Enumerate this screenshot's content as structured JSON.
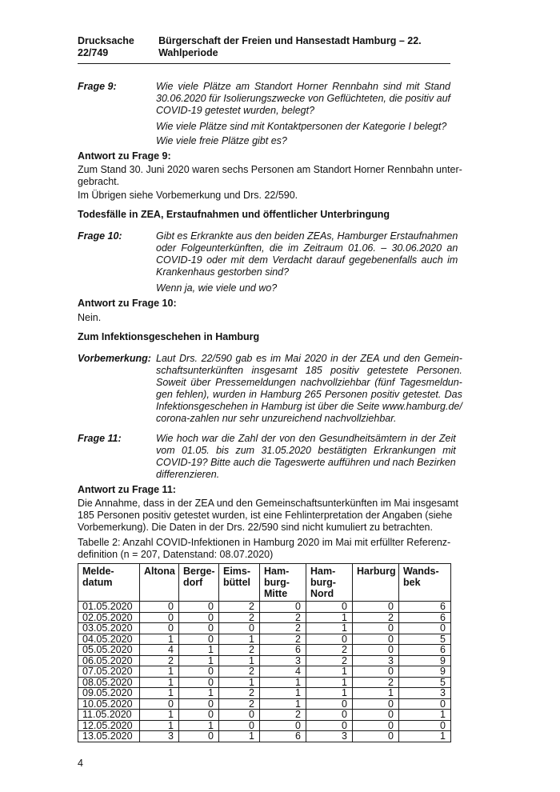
{
  "header": {
    "left": "Drucksache 22/749",
    "right": "Bürgerschaft der Freien und Hansestadt Hamburg – 22. Wahlperiode"
  },
  "frage9": {
    "label": "Frage 9:",
    "q1_lines": [
      "Wie viele Plätze am Standort Horner Rennbahn sind mit Stand",
      "30.06.2020 für Isolierungszwecke von Geflüchteten, die positiv auf",
      "COVID-19 getestet wurden, belegt?"
    ],
    "q2": "Wie viele Plätze sind mit Kontaktpersonen der Kategorie I belegt?",
    "q3": "Wie viele freie Plätze gibt es?"
  },
  "antwort9": {
    "heading": "Antwort zu Frage 9:",
    "para1_lines": [
      "Zum Stand 30. Juni 2020 waren sechs Personen am Standort Horner Rennbahn unter-",
      "gebracht."
    ],
    "para2": "Im Übrigen siehe Vorbemerkung und Drs. 22/590."
  },
  "section1_heading": "Todesfälle in ZEA, Erstaufnahmen und öffentlicher Unterbringung",
  "frage10": {
    "label": "Frage 10:",
    "q1_lines": [
      "Gibt es Erkrankte aus den beiden ZEAs, Hamburger Erstaufnahmen",
      "oder Folgeunterkünften, die im Zeitraum 01.06. – 30.06.2020 an",
      "COVID-19 oder mit dem Verdacht darauf gegebenenfalls auch im",
      "Krankenhaus gestorben sind?"
    ],
    "q2": "Wenn ja, wie viele und wo?"
  },
  "antwort10": {
    "heading": "Antwort zu Frage 10:",
    "text": "Nein."
  },
  "section2_heading": "Zum Infektionsgeschehen in Hamburg",
  "vorbemerkung": {
    "label": "Vorbemerkung:",
    "lines": [
      "Laut Drs. 22/590 gab es im Mai 2020 in der ZEA und den Gemein-",
      "schaftsunterkünften insgesamt 185 positiv getestete Personen.",
      "Soweit über Pressemeldungen nachvollziehbar (fünf Tagesmeldun-",
      "gen fehlen), wurden in Hamburg 265 Personen positiv getestet. Das",
      "Infektionsgeschehen in Hamburg ist über die Seite www.hamburg.de/",
      "corona-zahlen nur sehr unzureichend nachvollziehbar."
    ]
  },
  "frage11": {
    "label": "Frage 11:",
    "q1_lines": [
      "Wie hoch war die Zahl der von den Gesundheitsämtern in der Zeit",
      "vom 01.05. bis zum 31.05.2020 bestätigten Erkrankungen mit",
      "COVID-19? Bitte auch die Tageswerte aufführen und nach Bezirken",
      "differenzieren."
    ]
  },
  "antwort11": {
    "heading": "Antwort zu Frage 11:",
    "para1_lines": [
      "Die Annahme, dass in der ZEA und den Gemeinschaftsunterkünften im Mai insgesamt",
      "185 Personen positiv getestet wurden, ist eine Fehlinterpretation der Angaben (siehe",
      "Vorbemerkung). Die Daten in der Drs. 22/590 sind nicht kumuliert zu betrachten."
    ]
  },
  "table": {
    "caption_lines": [
      "Tabelle 2: Anzahl COVID-Infektionen in Hamburg 2020 im Mai mit erfüllter Referenz-",
      "definition (n = 207, Datenstand: 08.07.2020)"
    ],
    "columns": [
      "Melde-\ndatum",
      "Altona",
      "Berge-\ndorf",
      "Eims-\nbüttel",
      "Ham-\nburg-\nMitte",
      "Ham-\nburg-\nNord",
      "Harburg",
      "Wands-\nbek"
    ],
    "rows": [
      {
        "date": "01.05.2020",
        "values": [
          0,
          0,
          2,
          0,
          0,
          0,
          6
        ]
      },
      {
        "date": "02.05.2020",
        "values": [
          0,
          0,
          2,
          2,
          1,
          2,
          6
        ]
      },
      {
        "date": "03.05.2020",
        "values": [
          0,
          0,
          0,
          2,
          1,
          0,
          0
        ]
      },
      {
        "date": "04.05.2020",
        "values": [
          1,
          0,
          1,
          2,
          0,
          0,
          5
        ]
      },
      {
        "date": "05.05.2020",
        "values": [
          4,
          1,
          2,
          6,
          2,
          0,
          6
        ]
      },
      {
        "date": "06.05.2020",
        "values": [
          2,
          1,
          1,
          3,
          2,
          3,
          9
        ]
      },
      {
        "date": "07.05.2020",
        "values": [
          1,
          0,
          2,
          4,
          1,
          0,
          9
        ]
      },
      {
        "date": "08.05.2020",
        "values": [
          1,
          0,
          1,
          1,
          1,
          2,
          5
        ]
      },
      {
        "date": "09.05.2020",
        "values": [
          1,
          1,
          2,
          1,
          1,
          1,
          3
        ]
      },
      {
        "date": "10.05.2020",
        "values": [
          0,
          0,
          2,
          1,
          0,
          0,
          0
        ]
      },
      {
        "date": "11.05.2020",
        "values": [
          1,
          0,
          0,
          2,
          0,
          0,
          1
        ]
      },
      {
        "date": "12.05.2020",
        "values": [
          1,
          1,
          0,
          0,
          0,
          0,
          0
        ]
      },
      {
        "date": "13.05.2020",
        "values": [
          3,
          0,
          1,
          6,
          3,
          0,
          1
        ]
      }
    ]
  },
  "footer": {
    "page_number": "4"
  },
  "colors": {
    "text": "#111111",
    "background": "#ffffff",
    "table_border": "#1a1a1a"
  }
}
